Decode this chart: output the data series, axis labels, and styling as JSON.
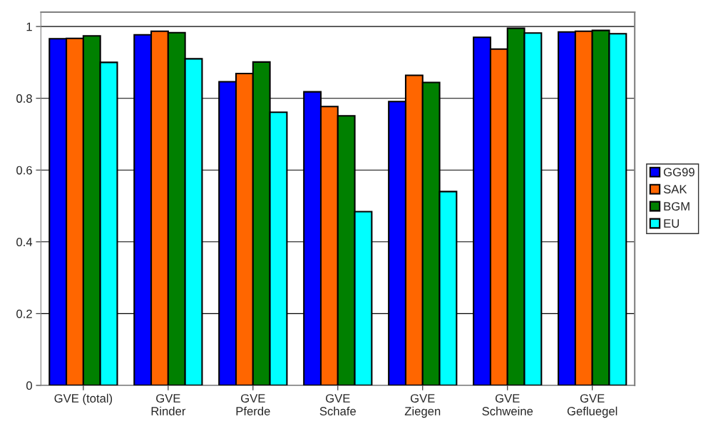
{
  "chart_data": {
    "type": "bar",
    "categories": [
      "GVE (total)",
      "GVE\nRinder",
      "GVE\nPferde",
      "GVE\nSchafe",
      "GVE\nZiegen",
      "GVE\nSchweine",
      "GVE\nGefluegel"
    ],
    "series": [
      {
        "name": "GG99",
        "color": "#0000ff",
        "values": [
          0.966,
          0.977,
          0.846,
          0.818,
          0.791,
          0.97,
          0.985
        ]
      },
      {
        "name": "SAK",
        "color": "#ff6600",
        "values": [
          0.967,
          0.987,
          0.869,
          0.777,
          0.864,
          0.937,
          0.987
        ]
      },
      {
        "name": "BGM",
        "color": "#008000",
        "values": [
          0.974,
          0.983,
          0.901,
          0.751,
          0.844,
          0.995,
          0.989
        ]
      },
      {
        "name": "EU",
        "color": "#00ffff",
        "values": [
          0.9,
          0.91,
          0.761,
          0.484,
          0.54,
          0.982,
          0.98
        ]
      }
    ],
    "ylim": [
      0,
      1.04
    ],
    "yticks": [
      0,
      0.2,
      0.4,
      0.6,
      0.8,
      1
    ],
    "grid": "y",
    "legend": "right"
  }
}
